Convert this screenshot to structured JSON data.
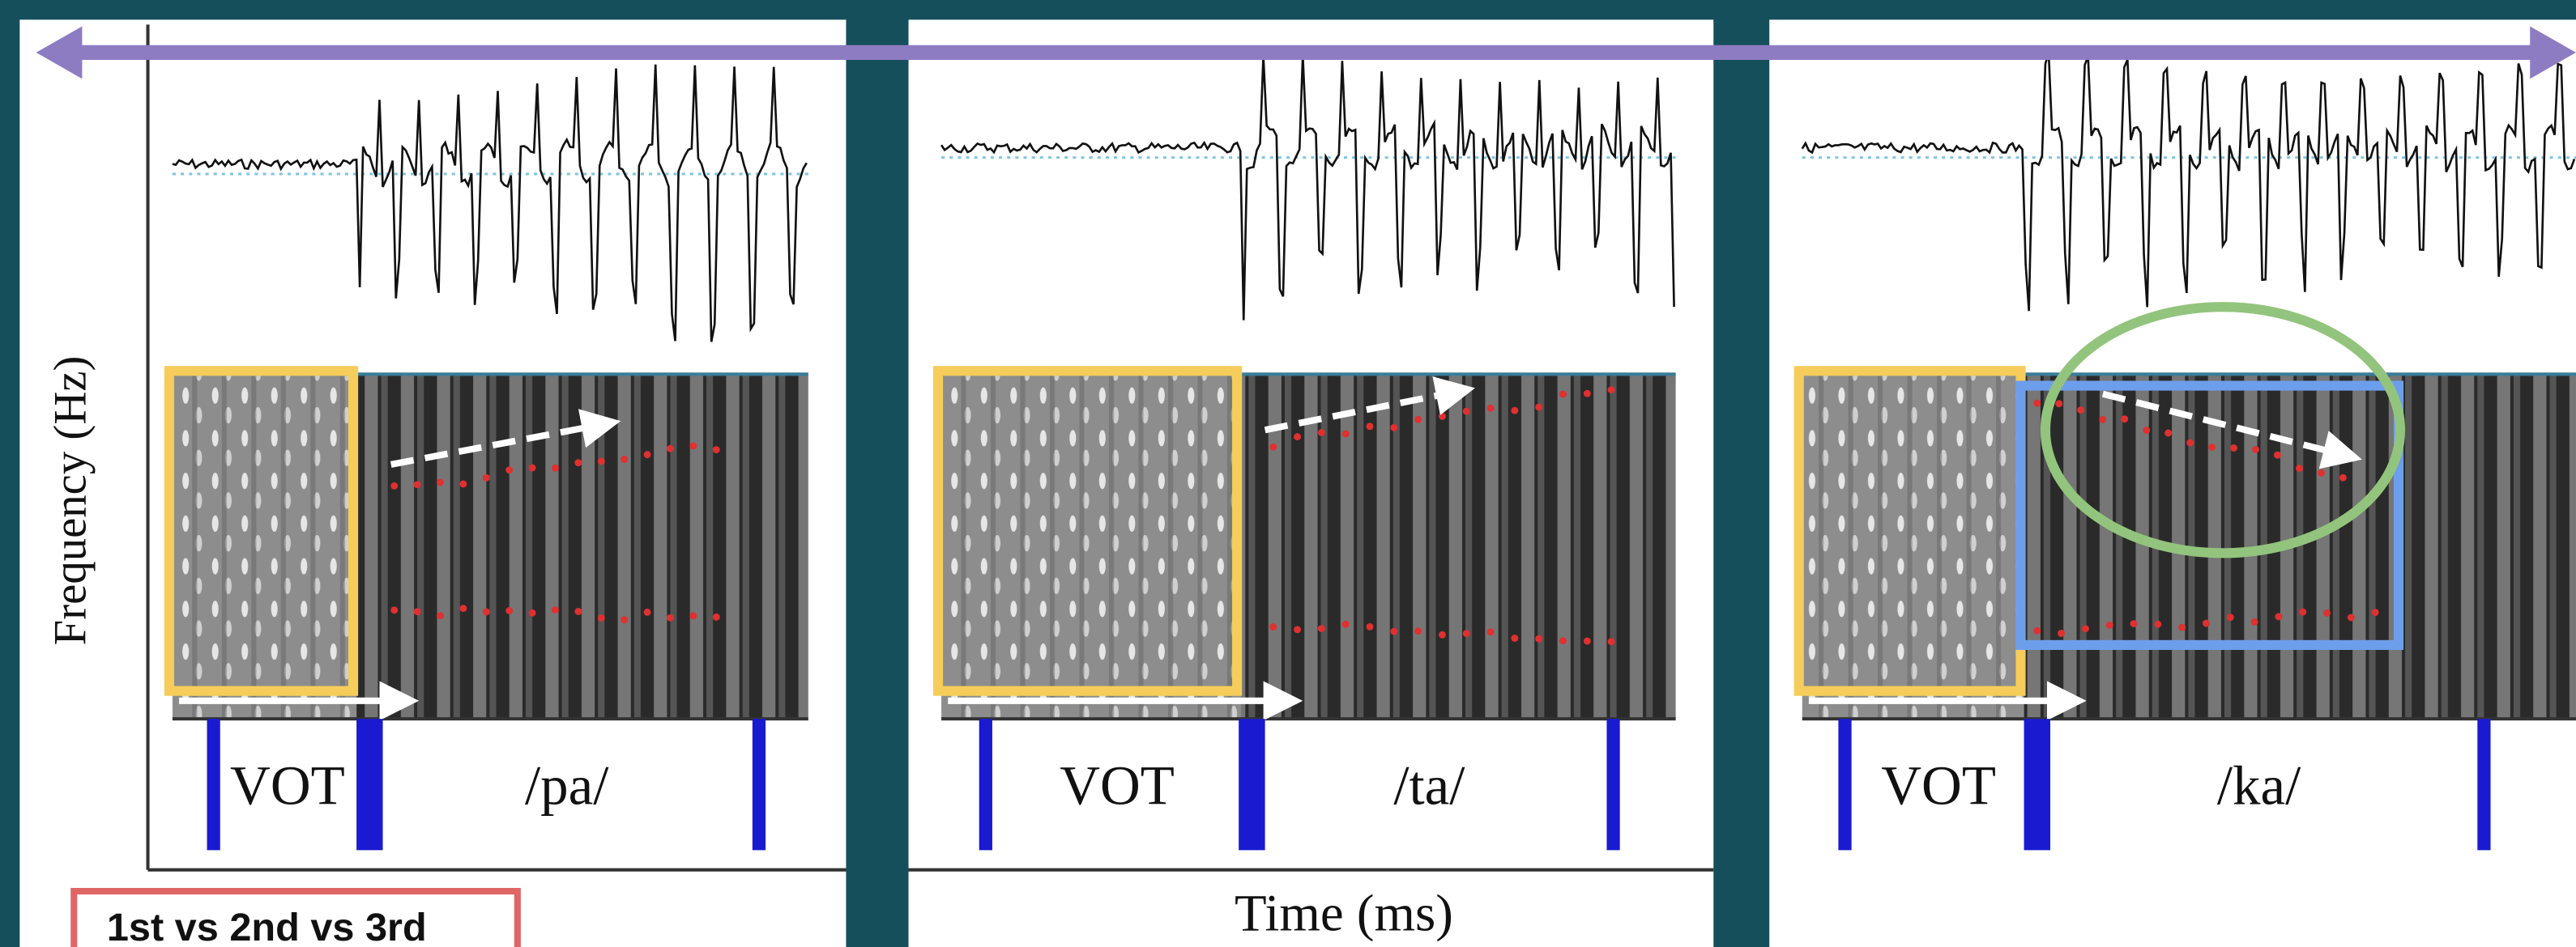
{
  "y_axis_label": "Frequency (Hz)",
  "x_axis_label": "Time (ms)",
  "panels": [
    {
      "segment": "VOT",
      "syllable": "/pa/"
    },
    {
      "segment": "VOT",
      "syllable": "/ta/"
    },
    {
      "segment": "VOT",
      "syllable": "/ka/"
    }
  ],
  "caption": "1st vs 2nd vs 3rd"
}
